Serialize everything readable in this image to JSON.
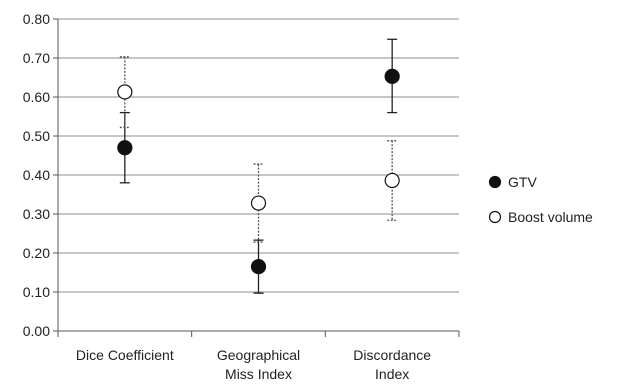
{
  "chart_data": {
    "type": "scatter",
    "title": "",
    "xlabel": "",
    "ylabel": "",
    "categories": [
      [
        "Dice Coefficient"
      ],
      [
        "Geographical",
        "Miss Index"
      ],
      [
        "Discordance",
        "Index"
      ]
    ],
    "ylim": [
      0,
      0.8
    ],
    "yticks": [
      "0.00",
      "0.10",
      "0.20",
      "0.30",
      "0.40",
      "0.50",
      "0.60",
      "0.70",
      "0.80"
    ],
    "grid": "horizontal",
    "legend_position": "right",
    "series": [
      {
        "name": "GTV",
        "marker": "filled-circle",
        "color": "#111111",
        "values": [
          0.47,
          0.165,
          0.653
        ],
        "error_low": [
          0.38,
          0.097,
          0.56
        ],
        "error_high": [
          0.56,
          0.233,
          0.748
        ],
        "error_style": "solid"
      },
      {
        "name": "Boost volume",
        "marker": "open-circle",
        "color": "#111111",
        "values": [
          0.613,
          0.328,
          0.386
        ],
        "error_low": [
          0.522,
          0.228,
          0.284
        ],
        "error_high": [
          0.703,
          0.428,
          0.488
        ],
        "error_style": "dotted"
      }
    ]
  }
}
